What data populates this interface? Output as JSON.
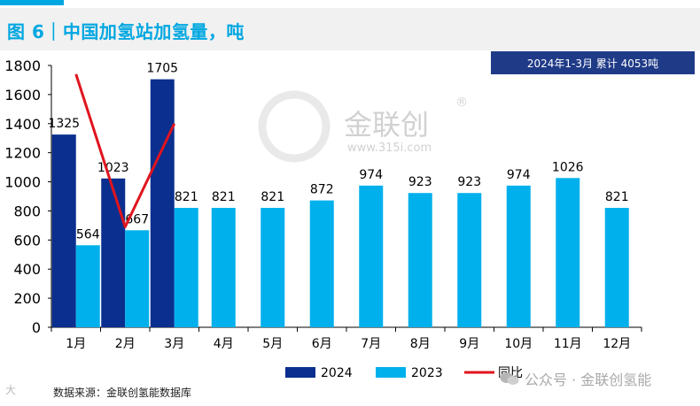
{
  "title": "图 6｜中国加氢站加氢量，吨",
  "summary": "2024年1-3月 累计 4053吨",
  "source": "数据来源：金联创氢能数据库",
  "brand_watermark": "公众号 · 金联创氢能",
  "bottom_watermark": "大",
  "logo": {
    "name": "金联创",
    "url": "www.315i.com",
    "mark": "®"
  },
  "colors": {
    "s2024": "#0a2f8f",
    "s2023": "#00b0ec",
    "yoy": "#e0141e",
    "accent": "#00a7e1"
  },
  "chart_data": {
    "type": "bar",
    "categories": [
      "1月",
      "2月",
      "3月",
      "4月",
      "5月",
      "6月",
      "7月",
      "8月",
      "9月",
      "10月",
      "11月",
      "12月"
    ],
    "series": [
      {
        "name": "2024",
        "values": [
          1325,
          1023,
          1705,
          null,
          null,
          null,
          null,
          null,
          null,
          null,
          null,
          null
        ]
      },
      {
        "name": "2023",
        "values": [
          564,
          667,
          821,
          821,
          821,
          872,
          974,
          923,
          923,
          974,
          1026,
          821
        ]
      }
    ],
    "line": {
      "name": "同比",
      "values": [
        1740,
        690,
        1400
      ]
    },
    "yticks": [
      0,
      200,
      400,
      600,
      800,
      1000,
      1200,
      1400,
      1600,
      1800
    ],
    "ylim": [
      0,
      1800
    ],
    "legend_position": "bottom"
  }
}
